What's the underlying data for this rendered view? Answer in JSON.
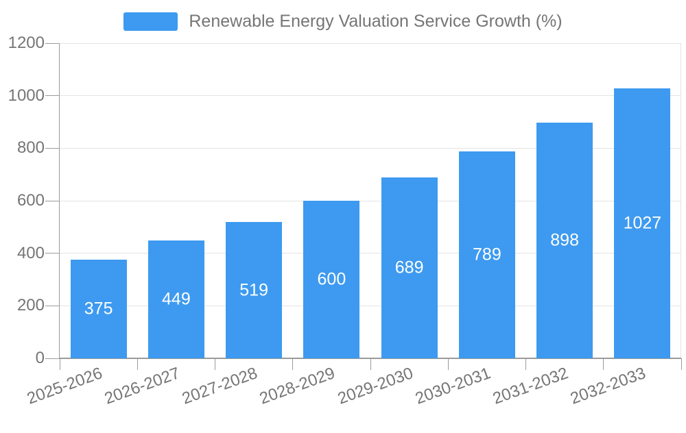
{
  "legend": {
    "items": [
      {
        "label": "Renewable Energy Valuation Service Growth (%)",
        "color": "#3d9af0"
      }
    ]
  },
  "chart_data": {
    "type": "bar",
    "title": "Renewable Energy Valuation Service Growth (%)",
    "categories": [
      "2025-2026",
      "2026-2027",
      "2027-2028",
      "2028-2029",
      "2029-2030",
      "2030-2031",
      "2031-2032",
      "2032-2033"
    ],
    "values": [
      375,
      449,
      519,
      600,
      689,
      789,
      898,
      1027
    ],
    "xlabel": "",
    "ylabel": "",
    "ylim": [
      0,
      1200
    ],
    "yticks": [
      0,
      200,
      400,
      600,
      800,
      1000,
      1200
    ],
    "grid": true,
    "legend_position": "top",
    "x_label_rotation_deg": -20,
    "value_labels": "inside-center",
    "colors": {
      "bar": "#3d9af0",
      "axis_line": "#9a9a9a",
      "gridline": "#e3e3e3",
      "tick_text": "#757575",
      "value_label_text": "#ffffff",
      "background": "#ffffff"
    }
  }
}
